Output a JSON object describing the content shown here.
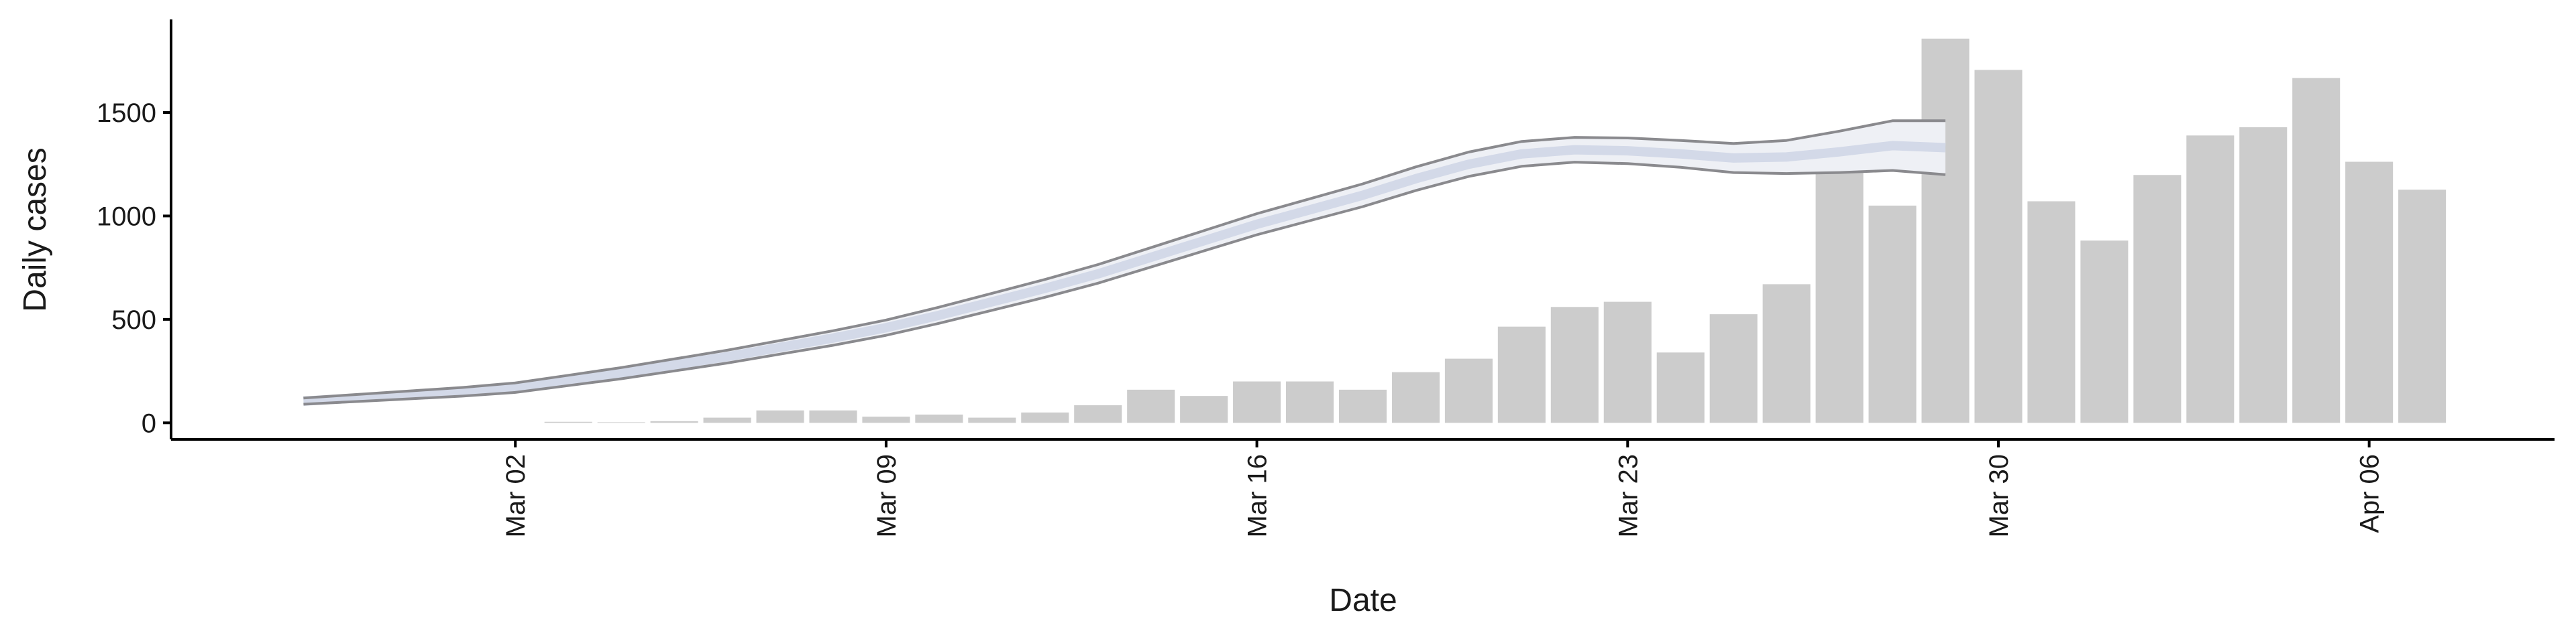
{
  "chart_data": {
    "type": "bar",
    "xlabel": "Date",
    "ylabel": "Daily cases",
    "categories": [
      null,
      null,
      null,
      null,
      "Mar 02",
      null,
      null,
      null,
      null,
      null,
      null,
      "Mar 09",
      null,
      null,
      null,
      null,
      null,
      null,
      "Mar 16",
      null,
      null,
      null,
      null,
      null,
      null,
      "Mar 23",
      null,
      null,
      null,
      null,
      null,
      null,
      "Mar 30",
      null,
      null,
      null,
      null,
      null,
      null,
      "Apr 06",
      null
    ],
    "values": [
      null,
      null,
      null,
      null,
      null,
      5,
      3,
      8,
      25,
      60,
      60,
      30,
      40,
      25,
      50,
      85,
      160,
      130,
      200,
      200,
      160,
      245,
      310,
      465,
      560,
      585,
      340,
      525,
      670,
      1300,
      1050,
      1857,
      1706,
      1071,
      881,
      1198,
      1389,
      1429,
      1667,
      1262,
      1127
    ],
    "color": "#cccccc",
    "band": {
      "type": "line",
      "color": "#d3d9e8",
      "edge_color": "#8a8a8e",
      "values": [
        105,
        120,
        135,
        150,
        170,
        205,
        240,
        280,
        320,
        365,
        410,
        460,
        520,
        585,
        650,
        720,
        800,
        880,
        960,
        1030,
        1100,
        1180,
        1250,
        1300,
        1320,
        1315,
        1300,
        1280,
        1285,
        1310,
        1340,
        1330,
        null,
        null,
        null,
        null,
        null,
        null,
        null,
        null,
        null
      ],
      "lower": [
        90,
        103,
        116,
        129,
        147,
        180,
        213,
        251,
        289,
        332,
        375,
        423,
        481,
        544,
        607,
        675,
        753,
        831,
        909,
        977,
        1045,
        1123,
        1191,
        1240,
        1260,
        1253,
        1235,
        1210,
        1205,
        1210,
        1220,
        1200,
        null,
        null,
        null,
        null,
        null,
        null,
        null,
        null,
        null
      ],
      "upper": [
        120,
        137,
        154,
        171,
        193,
        230,
        267,
        309,
        351,
        398,
        445,
        497,
        559,
        626,
        693,
        765,
        847,
        929,
        1011,
        1083,
        1155,
        1237,
        1309,
        1360,
        1380,
        1377,
        1365,
        1350,
        1365,
        1410,
        1460,
        1460,
        null,
        null,
        null,
        null,
        null,
        null,
        null,
        null,
        null
      ]
    },
    "ylim": [
      -80,
      1950
    ],
    "yticks": [
      0,
      500,
      1000,
      1500
    ]
  }
}
